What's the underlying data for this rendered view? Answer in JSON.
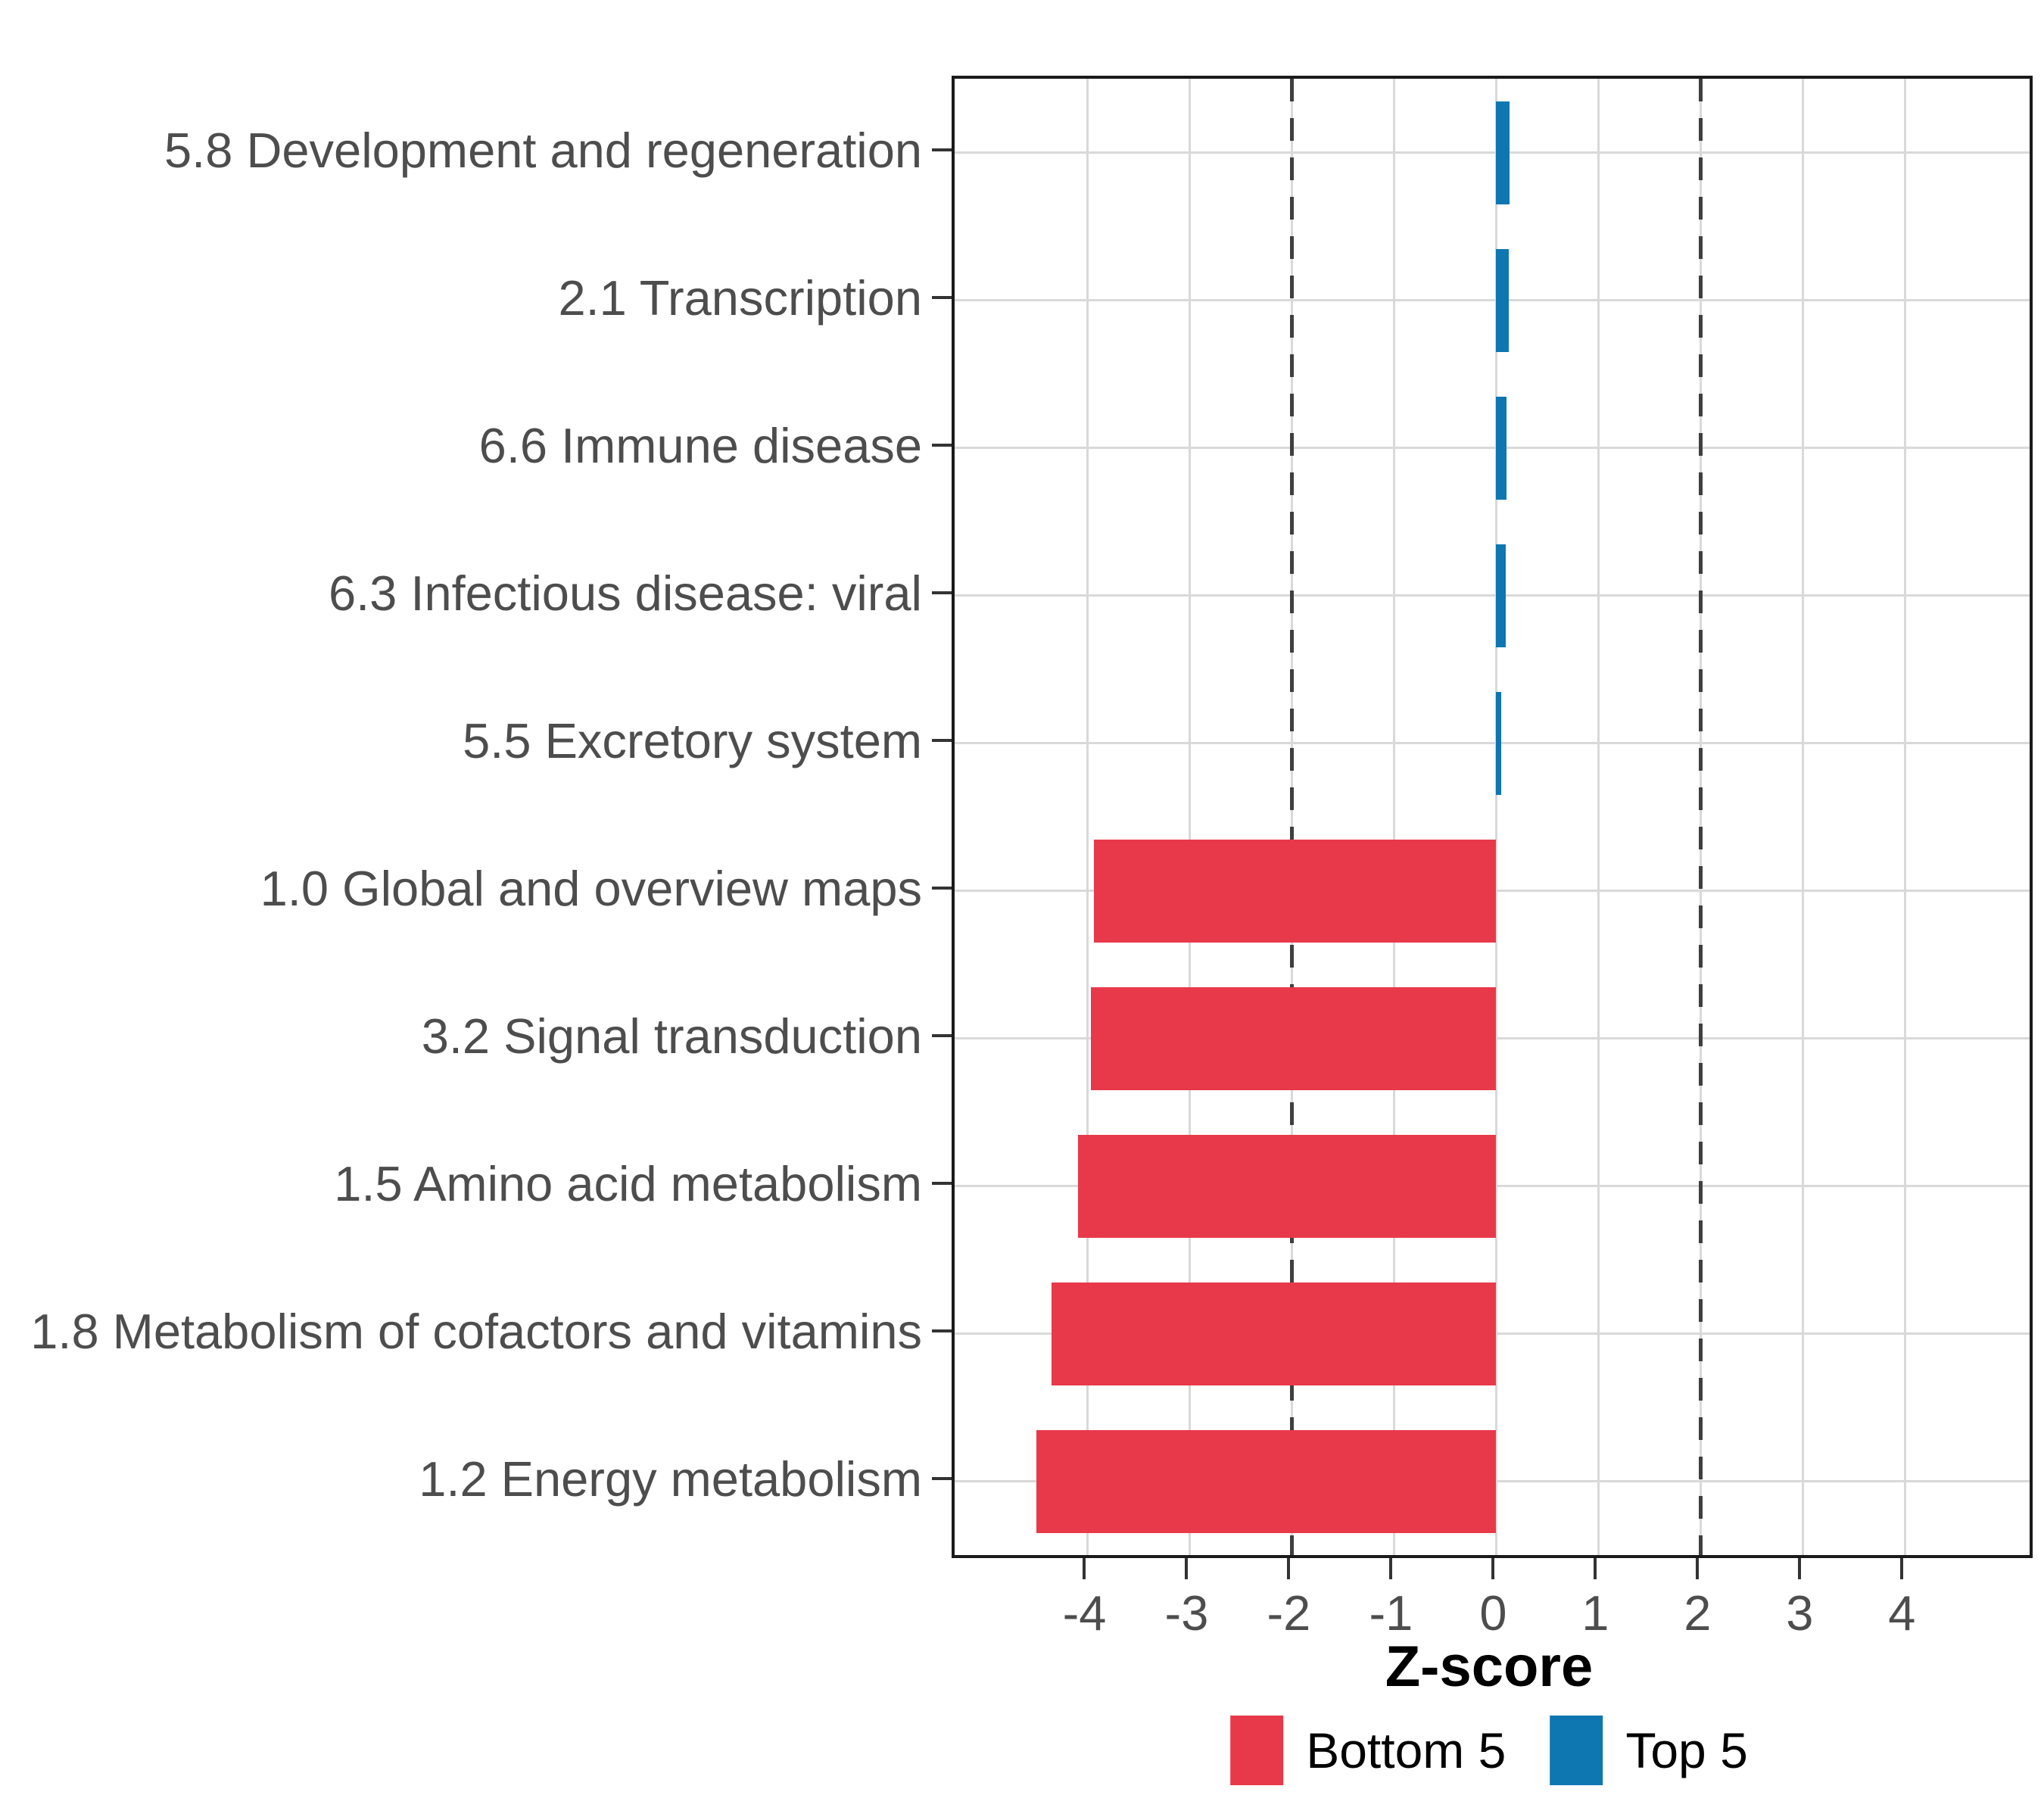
{
  "chart_data": {
    "type": "bar",
    "orientation": "horizontal",
    "title": "",
    "xlabel": "Z-score",
    "ylabel": "",
    "categories": [
      "5.8 Development and regeneration",
      "2.1 Transcription",
      "6.6 Immune disease",
      "6.3 Infectious disease: viral",
      "5.5 Excretory system",
      "1.0 Global and overview maps",
      "3.2 Signal transduction",
      "1.5 Amino acid metabolism",
      "1.8 Metabolism of cofactors and vitamins",
      "1.2 Energy metabolism"
    ],
    "values": [
      0.13,
      0.12,
      0.1,
      0.09,
      0.05,
      -3.94,
      -3.97,
      -4.09,
      -4.35,
      -4.5
    ],
    "groups": [
      "Top 5",
      "Top 5",
      "Top 5",
      "Top 5",
      "Top 5",
      "Bottom 5",
      "Bottom 5",
      "Bottom 5",
      "Bottom 5",
      "Bottom 5"
    ],
    "legend": [
      {
        "label": "Bottom 5",
        "color": "#E8394A"
      },
      {
        "label": "Top 5",
        "color": "#0E76B1"
      }
    ],
    "x_ticks": [
      "-4",
      "-3",
      "-2",
      "-1",
      "0",
      "1",
      "2",
      "3",
      "4"
    ],
    "x_tick_values": [
      -4,
      -3,
      -2,
      -1,
      0,
      1,
      2,
      3,
      4
    ],
    "xlim": [
      -5.3,
      5.22
    ],
    "reference_lines": [
      -2,
      2
    ],
    "grid": true,
    "legend_position": "bottom",
    "colors": {
      "grid": "#d9d9d9",
      "reference_line": "#3f3f3f",
      "axis_text": "#4d4d4d",
      "panel_border": "#1a1a1a"
    }
  }
}
